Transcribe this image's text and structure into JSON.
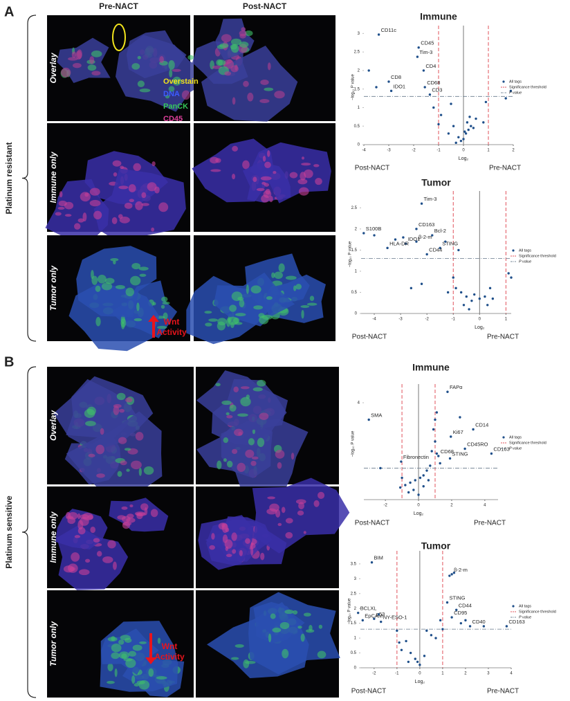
{
  "figure": {
    "panels": [
      {
        "letter": "A",
        "columns": [
          "Pre-NACT",
          "Post-NACT"
        ],
        "group": "Platinum resistant",
        "rows": [
          "Overlay",
          "Immune only",
          "Tumor only"
        ],
        "stain_legend": [
          {
            "text": "Overstain",
            "color": "#f2e41c"
          },
          {
            "text": "DNA",
            "color": "#3d5cff"
          },
          {
            "text": "PanCK",
            "color": "#35c95a"
          },
          {
            "text": "CD45",
            "color": "#e0409c"
          }
        ],
        "wnt": [
          "Wnt",
          "Activity"
        ]
      },
      {
        "letter": "B",
        "group": "Platinum sensitive",
        "rows": [
          "Overlay",
          "Immune only",
          "Tumor only"
        ],
        "wnt": [
          "Wnt",
          "Activity"
        ]
      }
    ]
  },
  "chart_data": [
    {
      "type": "scatter",
      "title": "Immune",
      "xlabel": "Log₂",
      "ylabel": "−log₁₀ P value",
      "left_label": "Post-NACT",
      "right_label": "Pre-NACT",
      "xlim": [
        -4,
        2
      ],
      "ylim": [
        0,
        3.1
      ],
      "xticks": [
        -4,
        -3,
        -2,
        -1,
        0,
        1,
        2
      ],
      "yticks": [
        0,
        0.5,
        1,
        1.5,
        2,
        2.5,
        3
      ],
      "thresholds": {
        "name": "Significance threshold",
        "x": [
          -1,
          1
        ],
        "color": "#e0505a"
      },
      "p_value_line": {
        "name": "P value",
        "y": 1.3,
        "color": "#7a8a99"
      },
      "series": [
        {
          "name": "All tags",
          "color": "#1f4f8a",
          "x": [
            -3.4,
            -1.8,
            -1.85,
            -1.6,
            -3.0,
            -1.55,
            -2.9,
            -1.35,
            -3.8,
            -3.5,
            -1.2,
            -0.9,
            -0.5,
            -0.4,
            -0.6,
            -0.2,
            -0.1,
            0,
            0.1,
            0.2,
            0.3,
            0.4,
            0.5,
            0.15,
            0.25,
            0.8,
            0.9,
            1.7,
            1.9,
            -1.0,
            0.05,
            -0.3
          ],
          "values": [
            2.97,
            2.62,
            2.37,
            2.0,
            1.7,
            1.55,
            1.45,
            1.35,
            2.0,
            1.55,
            1.0,
            0.8,
            1.1,
            0.5,
            0.3,
            0.2,
            0.1,
            0.15,
            0.3,
            0.4,
            0.5,
            0.45,
            0.7,
            0.6,
            0.75,
            0.6,
            1.15,
            1.25,
            1.45,
            0.55,
            0.35,
            0.05
          ],
          "labels": [
            "CD11c",
            "CD45",
            "Tim-3",
            "CD4",
            "CD8",
            "CD68",
            "IDO1",
            "CD3",
            null,
            null,
            null,
            null,
            null,
            null,
            null,
            null,
            null,
            null,
            null,
            null,
            null,
            null,
            null,
            null,
            null,
            null,
            null,
            null,
            null,
            null,
            null,
            null
          ]
        }
      ]
    },
    {
      "type": "scatter",
      "title": "Tumor",
      "xlabel": "Log₂",
      "ylabel": "−log₁₀ P value",
      "left_label": "Post-NACT",
      "right_label": "Pre-NACT",
      "xlim": [
        -4.5,
        1.2
      ],
      "ylim": [
        0,
        2.8
      ],
      "xticks": [
        -4,
        -3,
        -2,
        -1,
        0,
        1
      ],
      "yticks": [
        0,
        0.5,
        1,
        1.5,
        2,
        2.5
      ],
      "thresholds": {
        "name": "Significance threshold",
        "x": [
          -1,
          1
        ],
        "color": "#e0505a"
      },
      "p_value_line": {
        "name": "P value",
        "y": 1.3,
        "color": "#7a8a99"
      },
      "series": [
        {
          "name": "All tags",
          "color": "#1f4f8a",
          "x": [
            -2.2,
            -4.4,
            -2.4,
            -1.8,
            -2.8,
            -2.4,
            -3.5,
            -1.5,
            -2.0,
            -4.0,
            -3.2,
            -2.9,
            -1.3,
            -0.8,
            -2.6,
            -2.2,
            -1.0,
            -0.9,
            -0.7,
            -0.5,
            -0.3,
            -0.2,
            0,
            0.2,
            0.4,
            0.5,
            -1.2,
            1.2,
            1.1,
            -0.6,
            -0.4,
            0.3
          ],
          "values": [
            2.6,
            1.9,
            2.0,
            1.85,
            1.65,
            1.7,
            1.55,
            1.55,
            1.4,
            1.85,
            1.75,
            1.8,
            1.7,
            1.5,
            0.6,
            0.7,
            0.85,
            0.6,
            0.5,
            0.4,
            0.3,
            0.45,
            0.35,
            0.4,
            0.6,
            0.35,
            0.5,
            0.85,
            0.95,
            0.2,
            0.1,
            0.2
          ],
          "labels": [
            "Tim-3",
            "S100B",
            "CD163",
            "Bcl-2",
            "IDO1",
            "β-2-m",
            "HLA-DR",
            "STING",
            "CD44",
            null,
            null,
            null,
            null,
            null,
            null,
            null,
            null,
            null,
            null,
            null,
            null,
            null,
            null,
            null,
            null,
            null,
            null,
            null,
            null,
            null,
            null,
            null
          ]
        }
      ]
    },
    {
      "type": "scatter",
      "title": "Immune",
      "xlabel": "Log₂",
      "ylabel": "−log₁₀ P value",
      "left_label": "Post-NACT",
      "right_label": "Pre-NACT",
      "xlim": [
        -3.3,
        4.8
      ],
      "ylim": [
        0,
        4.6
      ],
      "xticks": [
        -2,
        0,
        2,
        4
      ],
      "yticks": [
        4
      ],
      "thresholds": {
        "name": "Significance threshold",
        "x": [
          -1,
          1
        ],
        "color": "#e0505a"
      },
      "p_value_line": {
        "name": "P value",
        "y": 1.3,
        "color": "#7a8a99"
      },
      "series": [
        {
          "name": "All tags",
          "color": "#1f4f8a",
          "x": [
            1.75,
            -3.0,
            3.3,
            1.95,
            1.2,
            2.8,
            1.9,
            4.4,
            -1.05,
            1.1,
            1.0,
            2.5,
            0.9,
            1.0,
            0.8,
            1.1,
            1.3,
            0.7,
            0.5,
            0.3,
            0.1,
            -0.2,
            -0.5,
            -0.8,
            -1.1,
            -0.3,
            -0.6,
            0,
            0.3,
            0.6,
            -2.3,
            -1.0
          ],
          "values": [
            4.45,
            3.3,
            2.9,
            2.6,
            1.8,
            2.1,
            1.7,
            1.9,
            1.57,
            3.6,
            3.3,
            3.4,
            2.9,
            2.4,
            2.0,
            1.9,
            1.5,
            1.4,
            1.2,
            1.0,
            0.9,
            0.8,
            0.7,
            0.6,
            0.5,
            0.4,
            0.3,
            0.2,
            0.55,
            0.8,
            1.3,
            0.9
          ],
          "labels": [
            "FAPα",
            "SMA",
            "CD14",
            "Ki67",
            "CD68",
            "CD45RO",
            "STING",
            "CD163",
            "Fibronectin",
            null,
            null,
            null,
            null,
            null,
            null,
            null,
            null,
            null,
            null,
            null,
            null,
            null,
            null,
            null,
            null,
            null,
            null,
            null,
            null,
            null,
            null,
            null
          ]
        }
      ]
    },
    {
      "type": "scatter",
      "title": "Tumor",
      "xlabel": "Log₂",
      "ylabel": "−log₁₀ P value",
      "left_label": "Post-NACT",
      "right_label": "Pre-NACT",
      "xlim": [
        -2.6,
        4.0
      ],
      "ylim": [
        0,
        3.8
      ],
      "xticks": [
        -2,
        -1,
        0,
        1,
        2,
        3,
        4
      ],
      "yticks": [
        0,
        0.5,
        1,
        1.5,
        2,
        2.5,
        3,
        3.5
      ],
      "thresholds": {
        "name": "Significance threshold",
        "x": [
          -1,
          1
        ],
        "color": "#e0505a"
      },
      "p_value_line": {
        "name": "P value",
        "y": 1.3,
        "color": "#7a8a99"
      },
      "series": [
        {
          "name": "All tags",
          "color": "#1f4f8a",
          "x": [
            -2.1,
            1.4,
            1.2,
            1.6,
            1.4,
            2.2,
            3.8,
            -2.7,
            -2.5,
            -2.0,
            -1.7,
            1.3,
            1.5,
            -1.8,
            -1.0,
            -0.9,
            -0.8,
            -0.6,
            -0.4,
            -0.2,
            -0.1,
            0,
            0.2,
            0.3,
            0.5,
            0.7,
            1.0,
            1.8,
            2.8,
            0.9,
            2.0,
            -0.5
          ],
          "values": [
            3.55,
            3.15,
            2.2,
            1.95,
            1.7,
            1.4,
            1.4,
            1.85,
            1.6,
            1.65,
            1.55,
            3.1,
            3.2,
            1.8,
            1.25,
            0.85,
            0.6,
            0.9,
            0.5,
            0.3,
            0.2,
            0.1,
            0.4,
            1.25,
            1.1,
            1.0,
            1.3,
            1.5,
            1.4,
            1.6,
            1.6,
            0.2
          ],
          "labels": [
            "BIM",
            "β-2-m",
            "STING",
            "CD44",
            "CD95",
            "CD40",
            "CD163",
            "BCLXL",
            "EpCAM",
            "p53",
            "NY-ESO-1",
            null,
            null,
            null,
            null,
            null,
            null,
            null,
            null,
            null,
            null,
            null,
            null,
            null,
            null,
            null,
            null,
            null,
            null,
            null,
            null,
            null
          ]
        }
      ]
    }
  ]
}
